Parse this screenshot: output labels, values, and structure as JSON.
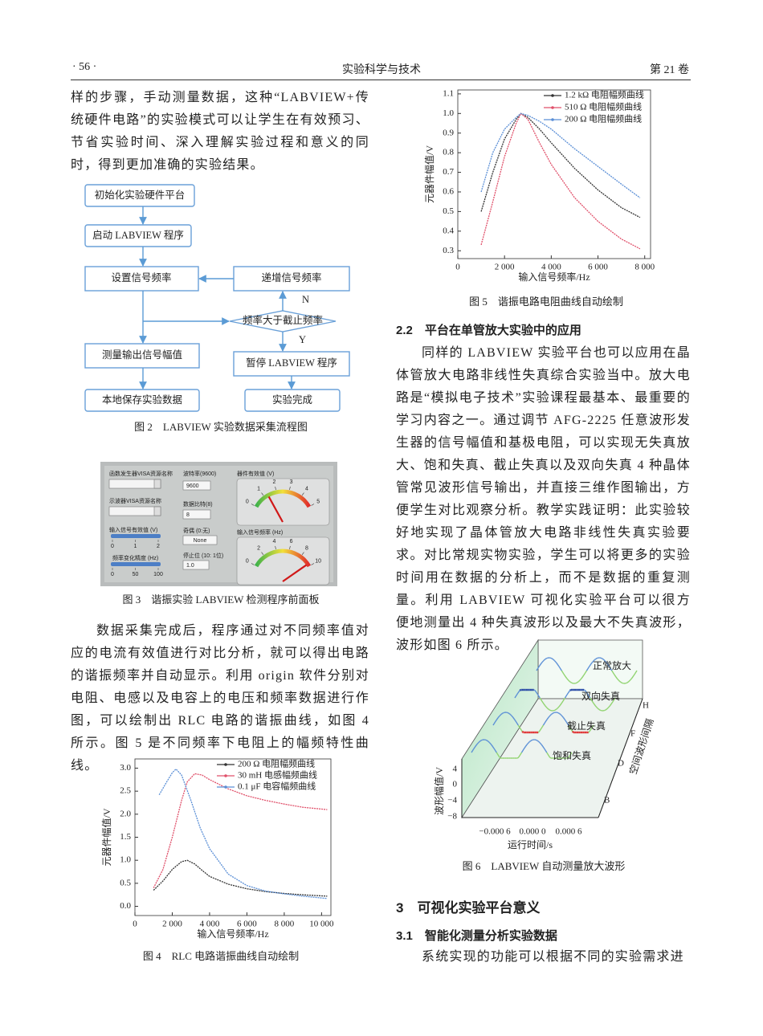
{
  "header": {
    "page_number": "· 56 ·",
    "journal": "实验科学与技术",
    "volume": "第 21 卷"
  },
  "left_column": {
    "paragraph_1": "样的步骤，手动测量数据，这种“LABVIEW+传统硬件电路”的实验模式可以让学生在有效预习、节省实验时间、深入理解实验过程和意义的同时，得到更加准确的实验结果。",
    "paragraph_2": "数据采集完成后，程序通过对不同频率值对应的电流有效值进行对比分析，就可以得出电路的谐振频率并自动显示。利用 origin 软件分别对电阻、电感以及电容上的电压和频率数据进行作图，可以绘制出 RLC 电路的谐振曲线，如图 4 所示。图 5 是不同频率下电阻上的幅频特性曲线。"
  },
  "figure2": {
    "nodes": [
      "初始化实验硬件平台",
      "启动 LABVIEW 程序",
      "设置信号频率",
      "递增信号频率",
      "测量输出信号幅值",
      "暂停 LABVIEW 程序",
      "本地保存实验数据",
      "实验完成"
    ],
    "decision": "频率大于截止频率",
    "branch_no": "N",
    "branch_yes": "Y",
    "caption": "图 2　LABVIEW 实验数据采集流程图"
  },
  "figure3": {
    "labels": [
      "函数发生器VISA资源名称",
      "示波器VISA资源名称",
      "波特率(9600)",
      "数据比特(8)",
      "奇偶 (0:无)",
      "停止位 (10: 1位)"
    ],
    "fields": [
      "9600",
      "8",
      "None",
      "1.0"
    ],
    "sliders": [
      {
        "label": "输入信号有效值 (V)",
        "ticks": [
          0,
          1,
          2
        ]
      },
      {
        "label": "频率变化精度 (Hz)",
        "ticks": [
          0,
          50,
          100
        ]
      }
    ],
    "gauges": [
      {
        "label": "器件有效值 (V)",
        "ticks": [
          0,
          1,
          2,
          3,
          4,
          5
        ],
        "value": 1.3
      },
      {
        "label": "输入信号频率 (Hz)",
        "ticks": [
          0,
          2,
          4,
          6,
          8,
          10
        ],
        "value": 9.6
      }
    ],
    "caption": "图 3　谐振实验 LABVIEW 检测程序前面板"
  },
  "figure4": {
    "type": "line",
    "xlabel": "输入信号频率/Hz",
    "ylabel": "元器件幅值/V",
    "xlim": [
      0,
      10500
    ],
    "xticks": [
      0,
      {
        "value": 2000,
        "label": "2 000"
      },
      {
        "value": 4000,
        "label": "4 000"
      },
      {
        "value": 6000,
        "label": "6 000"
      },
      {
        "value": 8000,
        "label": "8 000"
      },
      {
        "value": 10000,
        "label": "10 000"
      }
    ],
    "ylim": [
      -0.2,
      3.2
    ],
    "yticks": [
      {
        "value": 0,
        "label": "0.0"
      },
      0.5,
      {
        "value": 1,
        "label": "1.0"
      },
      1.5,
      {
        "value": 2,
        "label": "2.0"
      },
      2.5,
      {
        "value": 3,
        "label": "3.0"
      }
    ],
    "legend": "upper right",
    "series": [
      {
        "name": "200 Ω 电阻幅频曲线",
        "color": "#333333",
        "x": [
          1000,
          1500,
          2000,
          2500,
          2800,
          3200,
          3600,
          4000,
          5000,
          6000,
          7000,
          8000,
          9000,
          10300
        ],
        "values": [
          0.35,
          0.55,
          0.8,
          0.97,
          1.0,
          0.92,
          0.78,
          0.65,
          0.48,
          0.38,
          0.32,
          0.28,
          0.25,
          0.22
        ]
      },
      {
        "name": "30 mH 电感幅频曲线",
        "color": "#e0506a",
        "x": [
          1000,
          1500,
          2000,
          2500,
          2800,
          3200,
          3600,
          4000,
          5000,
          6000,
          7000,
          8000,
          9000,
          10300
        ],
        "values": [
          0.4,
          0.8,
          1.5,
          2.3,
          2.7,
          2.88,
          2.85,
          2.75,
          2.55,
          2.4,
          2.3,
          2.22,
          2.15,
          2.1
        ]
      },
      {
        "name": "0.1 μF 电容幅频曲线",
        "color": "#5b8fd6",
        "x": [
          1300,
          1700,
          2000,
          2200,
          2500,
          3000,
          3500,
          4000,
          5000,
          6000,
          7000,
          8000,
          9000,
          10300
        ],
        "values": [
          2.42,
          2.7,
          2.9,
          2.98,
          2.85,
          2.3,
          1.7,
          1.25,
          0.7,
          0.45,
          0.33,
          0.27,
          0.22,
          0.17
        ]
      }
    ],
    "caption": "图 4　RLC 电路谐振曲线自动绘制"
  },
  "figure5": {
    "type": "line",
    "xlabel": "输入信号频率/Hz",
    "ylabel": "元器件幅值/V",
    "xlim": [
      0,
      8250
    ],
    "xticks": [
      0,
      {
        "value": 2000,
        "label": "2 000"
      },
      {
        "value": 4000,
        "label": "4 000"
      },
      {
        "value": 6000,
        "label": "6 000"
      },
      {
        "value": 8000,
        "label": "8 000"
      }
    ],
    "ylim": [
      0.26,
      1.12
    ],
    "yticks": [
      0.3,
      0.4,
      0.5,
      0.6,
      0.7,
      0.8,
      0.9,
      {
        "value": 1,
        "label": "1.0"
      },
      1.1
    ],
    "legend": "upper right",
    "series": [
      {
        "name": "1.2 kΩ 电阻幅频曲线",
        "color": "#333333",
        "x": [
          1000,
          1500,
          2000,
          2500,
          2700,
          3000,
          3500,
          4000,
          5000,
          6000,
          7000,
          7800
        ],
        "values": [
          0.5,
          0.7,
          0.87,
          0.97,
          1.0,
          0.98,
          0.92,
          0.85,
          0.72,
          0.61,
          0.52,
          0.47
        ]
      },
      {
        "name": "510 Ω 电阻幅频曲线",
        "color": "#e0506a",
        "x": [
          1000,
          1500,
          2000,
          2500,
          2700,
          3000,
          3500,
          4000,
          5000,
          6000,
          7000,
          7800
        ],
        "values": [
          0.33,
          0.55,
          0.78,
          0.95,
          1.0,
          0.97,
          0.85,
          0.74,
          0.57,
          0.45,
          0.36,
          0.31
        ]
      },
      {
        "name": "200 Ω 电阻幅频曲线",
        "color": "#5b8fd6",
        "x": [
          1000,
          1500,
          2000,
          2500,
          2700,
          3000,
          3500,
          4000,
          5000,
          6000,
          7000,
          7800
        ],
        "values": [
          0.6,
          0.8,
          0.92,
          0.98,
          1.0,
          0.99,
          0.96,
          0.92,
          0.82,
          0.73,
          0.64,
          0.57
        ]
      }
    ],
    "caption": "图 5　谐振电路电阻曲线自动绘制"
  },
  "right_column": {
    "section_2_2": "2.2　平台在单管放大实验中的应用",
    "paragraph_2_2": "同样的 LABVIEW 实验平台也可以应用在晶体管放大电路非线性失真综合实验当中。放大电路是“模拟电子技术”实验课程最基本、最重要的学习内容之一。通过调节 AFG-2225 任意波形发生器的信号幅值和基极电阻，可以实现无失真放大、饱和失真、截止失真以及双向失真 4 种晶体管常见波形信号输出，并直接三维作图输出，方便学生对比观察分析。教学实践证明：此实验较好地实现了晶体管放大电路非线性失真实验要求。对比常规实物实验，学生可以将更多的实验时间用在数据的分析上，而不是数据的重复测量。利用 LABVIEW 可视化实验平台可以很方便地测量出 4 种失真波形以及最大不失真波形，波形如图 6 所示。",
    "section_3": "3　可视化实验平台意义",
    "section_3_1": "3.1　智能化测量分析实验数据",
    "paragraph_3_1": "系统实现的功能可以根据不同的实验需求进"
  },
  "figure6": {
    "wave_labels": [
      "正常放大",
      "双向失真",
      "截止失真",
      "饱和失真"
    ],
    "depth_ticks": [
      "H",
      "F",
      "D",
      "B"
    ],
    "depth_label": "空间波形间隔",
    "ylabel": "波形幅值/V",
    "yticks": [
      "4",
      "0",
      "−4",
      "−8"
    ],
    "xticks": [
      "−0.000 6",
      "0.000 0",
      "0.000 6"
    ],
    "xlabel": "运行时间/s",
    "caption": "图 6　LABVIEW 自动测量放大波形"
  }
}
